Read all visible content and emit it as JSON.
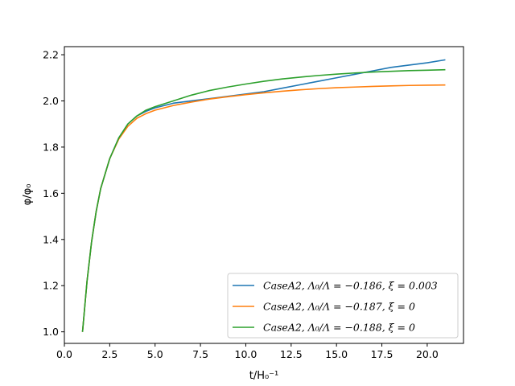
{
  "chart_data": {
    "type": "line",
    "title": "",
    "xlabel": "t/H₀⁻¹",
    "ylabel": "φ/φ₀",
    "xlim": [
      0.0,
      22.0
    ],
    "ylim": [
      0.95,
      2.235
    ],
    "xticks": [
      0.0,
      2.5,
      5.0,
      7.5,
      10.0,
      12.5,
      15.0,
      17.5,
      20.0
    ],
    "xtick_labels": [
      "0.0",
      "2.5",
      "5.0",
      "7.5",
      "10.0",
      "12.5",
      "15.0",
      "17.5",
      "20.0"
    ],
    "yticks": [
      1.0,
      1.2,
      1.4,
      1.6,
      1.8,
      2.0,
      2.2
    ],
    "ytick_labels": [
      "1.0",
      "1.2",
      "1.4",
      "1.6",
      "1.8",
      "2.0",
      "2.2"
    ],
    "grid": false,
    "legend_position": "lower-right",
    "series": [
      {
        "name": "CaseA2, Λ₀/Λ = −0.186, ξ = 0.003",
        "color": "#1f77b4",
        "x": [
          1.0,
          1.25,
          1.5,
          1.75,
          2.0,
          2.5,
          3.0,
          3.5,
          4.0,
          4.5,
          5.0,
          6.0,
          7.0,
          8.0,
          9.0,
          10.0,
          11.0,
          12.0,
          13.0,
          14.0,
          15.0,
          16.0,
          17.0,
          18.0,
          19.0,
          20.0,
          21.0
        ],
        "y": [
          1.0,
          1.22,
          1.39,
          1.52,
          1.62,
          1.75,
          1.84,
          1.9,
          1.935,
          1.955,
          1.97,
          1.99,
          2.0,
          2.01,
          2.02,
          2.03,
          2.04,
          2.055,
          2.07,
          2.085,
          2.1,
          2.115,
          2.13,
          2.145,
          2.155,
          2.165,
          2.178
        ]
      },
      {
        "name": "CaseA2, Λ₀/Λ = −0.187, ξ = 0",
        "color": "#ff7f0e",
        "x": [
          1.0,
          1.25,
          1.5,
          1.75,
          2.0,
          2.5,
          3.0,
          3.5,
          4.0,
          4.5,
          5.0,
          6.0,
          7.0,
          8.0,
          9.0,
          10.0,
          11.0,
          12.0,
          13.0,
          14.0,
          15.0,
          16.0,
          17.0,
          18.0,
          19.0,
          20.0,
          21.0
        ],
        "y": [
          1.0,
          1.22,
          1.39,
          1.52,
          1.62,
          1.75,
          1.835,
          1.89,
          1.925,
          1.945,
          1.96,
          1.98,
          1.995,
          2.008,
          2.018,
          2.027,
          2.035,
          2.042,
          2.048,
          2.053,
          2.057,
          2.06,
          2.063,
          2.065,
          2.067,
          2.068,
          2.069
        ]
      },
      {
        "name": "CaseA2, Λ₀/Λ = −0.188, ξ = 0",
        "color": "#2ca02c",
        "x": [
          1.0,
          1.25,
          1.5,
          1.75,
          2.0,
          2.5,
          3.0,
          3.5,
          4.0,
          4.5,
          5.0,
          6.0,
          7.0,
          8.0,
          9.0,
          10.0,
          11.0,
          12.0,
          13.0,
          14.0,
          15.0,
          16.0,
          17.0,
          18.0,
          19.0,
          20.0,
          21.0
        ],
        "y": [
          1.0,
          1.22,
          1.39,
          1.52,
          1.62,
          1.75,
          1.84,
          1.9,
          1.935,
          1.96,
          1.975,
          2.0,
          2.025,
          2.045,
          2.06,
          2.073,
          2.085,
          2.095,
          2.103,
          2.11,
          2.116,
          2.121,
          2.125,
          2.128,
          2.131,
          2.133,
          2.135
        ]
      }
    ]
  }
}
